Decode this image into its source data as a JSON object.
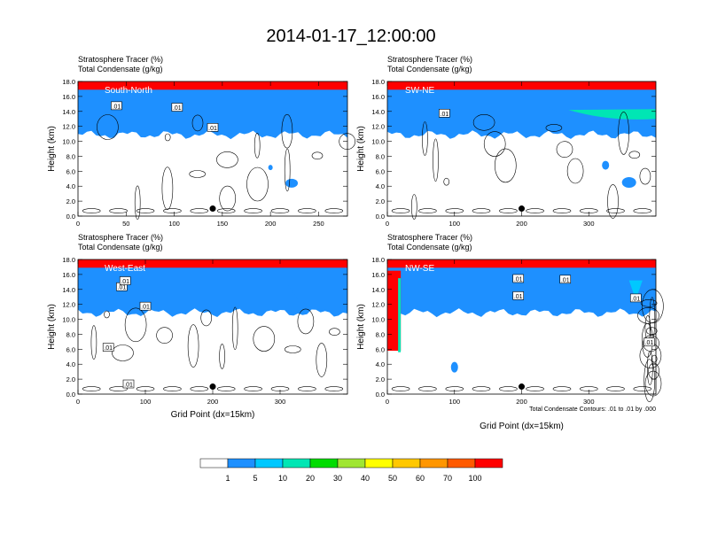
{
  "title": "2014-01-17_12:00:00",
  "header_line1": "Stratosphere Tracer   (%)",
  "header_line2": "Total Condensate   (g/kg)",
  "ylabel": "Height (km)",
  "xlabel": "Grid Point (dx=15km)",
  "contour_note": "Total Condensate Contours: .01 to .01 by .000",
  "contour_label": ".01",
  "colorbar": {
    "levels": [
      "1",
      "5",
      "10",
      "20",
      "30",
      "40",
      "50",
      "60",
      "70",
      "100"
    ],
    "colors": [
      "#ffffff",
      "#1e90ff",
      "#00c8ff",
      "#00e6b4",
      "#00dc00",
      "#a0e632",
      "#ffff00",
      "#ffc800",
      "#ff9600",
      "#ff5a00",
      "#ff0000"
    ]
  },
  "chart_data": [
    {
      "type": "heatmap",
      "panel_label": "South-North",
      "xlim": [
        0,
        280
      ],
      "xticks": [
        "0",
        "50",
        "100",
        "150",
        "200",
        "250"
      ],
      "xtick_values": [
        0,
        50,
        100,
        150,
        200,
        250
      ],
      "ylim": [
        0,
        18
      ],
      "yticks": [
        "0.0",
        "2.0",
        "4.0",
        "6.0",
        "8.0",
        "10.0",
        "12.0",
        "14.0",
        "16.0",
        "18.0"
      ],
      "marker_x": 140,
      "contour_labels_at": [
        [
          40,
          14.7
        ],
        [
          103,
          14.5
        ],
        [
          140,
          11.8
        ]
      ]
    },
    {
      "type": "heatmap",
      "panel_label": "SW-NE",
      "xlim": [
        0,
        400
      ],
      "xticks": [
        "0",
        "100",
        "200",
        "300"
      ],
      "xtick_values": [
        0,
        100,
        200,
        300
      ],
      "ylim": [
        0,
        18
      ],
      "yticks": [
        "0.0",
        "2.0",
        "4.0",
        "6.0",
        "8.0",
        "10.0",
        "12.0",
        "14.0",
        "16.0",
        "18.0"
      ],
      "marker_x": 200,
      "contour_labels_at": [
        [
          85,
          13.7
        ]
      ]
    },
    {
      "type": "heatmap",
      "panel_label": "West-East",
      "xlim": [
        0,
        400
      ],
      "xticks": [
        "0",
        "100",
        "200",
        "300"
      ],
      "xtick_values": [
        0,
        100,
        200,
        300
      ],
      "ylim": [
        0,
        18
      ],
      "yticks": [
        "0.0",
        "2.0",
        "4.0",
        "6.0",
        "8.0",
        "10.0",
        "12.0",
        "14.0",
        "16.0",
        "18.0"
      ],
      "marker_x": 200,
      "contour_labels_at": [
        [
          65,
          14.3
        ],
        [
          100,
          11.7
        ],
        [
          45,
          6.2
        ],
        [
          75,
          1.3
        ],
        [
          70,
          15.1
        ]
      ]
    },
    {
      "type": "heatmap",
      "panel_label": "NW-SE",
      "xlim": [
        0,
        400
      ],
      "xticks": [
        "0",
        "100",
        "200",
        "300"
      ],
      "xtick_values": [
        0,
        100,
        200,
        300
      ],
      "ylim": [
        0,
        18
      ],
      "yticks": [
        "0.0",
        "2.0",
        "4.0",
        "6.0",
        "8.0",
        "10.0",
        "12.0",
        "14.0",
        "16.0",
        "18.0"
      ],
      "marker_x": 200,
      "contour_labels_at": [
        [
          195,
          15.4
        ],
        [
          265,
          15.3
        ],
        [
          370,
          12.8
        ],
        [
          390,
          6.9
        ],
        [
          195,
          13.1
        ]
      ]
    }
  ]
}
